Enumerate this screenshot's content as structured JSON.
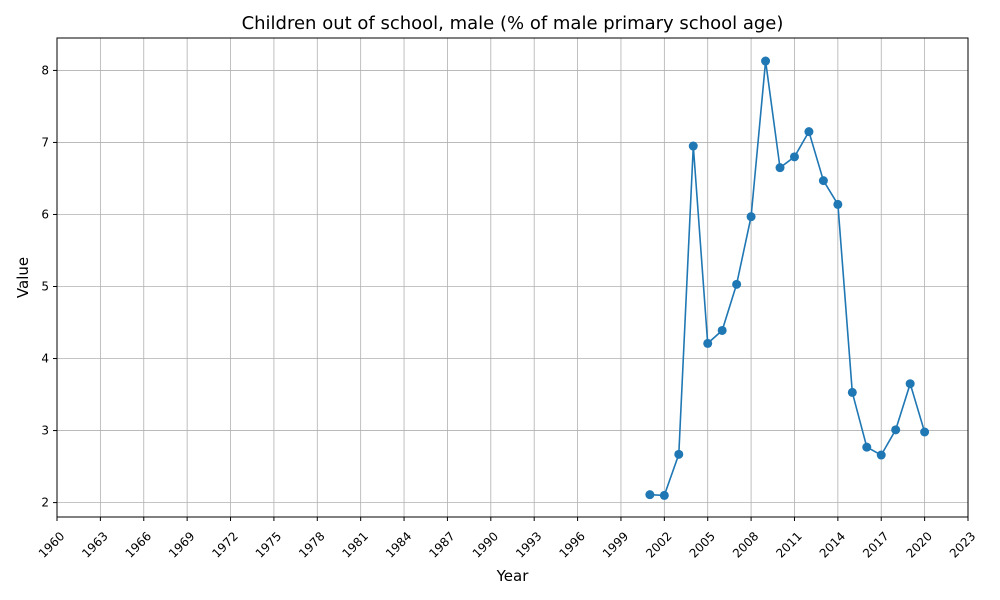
{
  "chart_data": {
    "type": "line",
    "title": "Children out of school, male (% of male primary school age)",
    "xlabel": "Year",
    "ylabel": "Value",
    "xlim": [
      1960,
      2023
    ],
    "ylim": [
      1.8,
      8.45
    ],
    "xticks": [
      1960,
      1963,
      1966,
      1969,
      1972,
      1975,
      1978,
      1981,
      1984,
      1987,
      1990,
      1993,
      1996,
      1999,
      2002,
      2005,
      2008,
      2011,
      2014,
      2017,
      2020,
      2023
    ],
    "yticks": [
      2,
      3,
      4,
      5,
      6,
      7,
      8
    ],
    "grid": true,
    "color": "#1f77b4",
    "x": [
      2001,
      2002,
      2003,
      2004,
      2005,
      2006,
      2007,
      2008,
      2009,
      2010,
      2011,
      2012,
      2013,
      2014,
      2015,
      2016,
      2017,
      2018,
      2019,
      2020
    ],
    "values": [
      2.11,
      2.1,
      2.67,
      6.95,
      4.21,
      4.39,
      5.03,
      5.97,
      8.13,
      6.65,
      6.8,
      7.15,
      6.47,
      6.14,
      3.53,
      2.77,
      2.66,
      3.01,
      3.65,
      2.98
    ]
  }
}
